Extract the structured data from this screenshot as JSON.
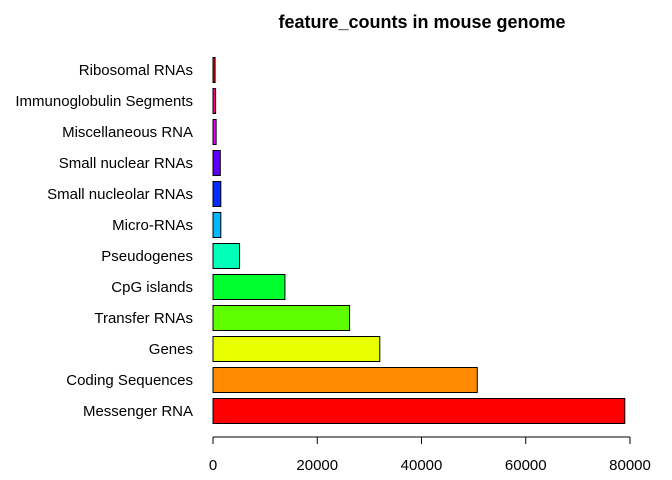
{
  "chart_data": {
    "type": "bar",
    "orientation": "horizontal",
    "title": "feature_counts in mouse genome",
    "xlabel": "",
    "ylabel": "",
    "xlim": [
      0,
      80000
    ],
    "x_ticks": [
      "0",
      "20000",
      "40000",
      "60000",
      "80000"
    ],
    "grid": false,
    "legend": "none",
    "categories": [
      "Messenger RNA",
      "Coding Sequences",
      "Genes",
      "Transfer RNAs",
      "CpG islands",
      "Pseudogenes",
      "Micro-RNAs",
      "Small nucleolar RNAs",
      "Small nuclear RNAs",
      "Miscellaneous RNA",
      "Immunoglobulin Segments",
      "Ribosomal RNAs"
    ],
    "values": [
      79000,
      50700,
      32000,
      26200,
      13800,
      5100,
      1500,
      1500,
      1400,
      600,
      500,
      400
    ],
    "colors": [
      "#FF0000",
      "#FF8B00",
      "#E8FF00",
      "#5DFF00",
      "#00FF2E",
      "#00FFB9",
      "#00B9FF",
      "#002EFF",
      "#5D00FF",
      "#E800FF",
      "#FF008B",
      "#FF0000"
    ],
    "bar_border": "#000000"
  }
}
